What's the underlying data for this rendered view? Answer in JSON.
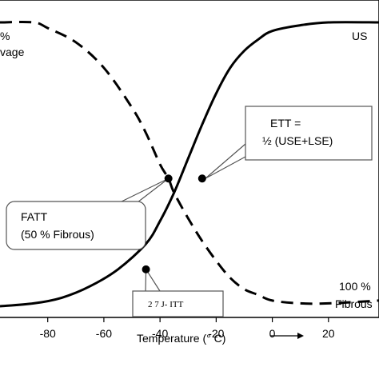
{
  "chart_data": {
    "type": "line",
    "xlabel": "Temperature (° C)",
    "ylabel": "",
    "xlim": [
      -97,
      38
    ],
    "ylim": [
      0,
      100
    ],
    "x_ticks": [
      -80,
      -60,
      -40,
      -20,
      0,
      20
    ],
    "x_tick_labels": [
      "-80",
      "-60",
      "-40",
      "-20",
      "0",
      "20"
    ],
    "grid": false,
    "series": [
      {
        "name": "",
        "style": "solid",
        "x": [
          -97,
          -85,
          -75,
          -65,
          -55,
          -45,
          -40,
          -35,
          -30,
          -25,
          -20,
          -15,
          -10,
          -5,
          0,
          10,
          20,
          38
        ],
        "y": [
          0,
          1,
          3,
          7,
          13,
          22,
          30,
          40,
          52,
          64,
          75,
          84,
          90,
          94,
          97,
          99,
          100,
          100
        ]
      },
      {
        "name": "",
        "style": "dashed",
        "x": [
          -97,
          -85,
          -80,
          -70,
          -60,
          -50,
          -45,
          -40,
          -37,
          -35,
          -30,
          -25,
          -20,
          -15,
          -10,
          -5,
          0,
          10,
          20,
          38
        ],
        "y": [
          100,
          100,
          98,
          93,
          84,
          70,
          61,
          50,
          45,
          40,
          31,
          23,
          16,
          10,
          6,
          4,
          2,
          1,
          1,
          2
        ]
      }
    ],
    "markers": [
      {
        "x": -37,
        "y": 45
      },
      {
        "x": -25,
        "y": 45
      },
      {
        "x": -45,
        "y": 13
      }
    ],
    "annotations": {
      "top_left_1": "%",
      "top_left_2": "vage",
      "top_right": "US",
      "bottom_right_1": "100 %",
      "bottom_right_2": "Fibrous",
      "ett_1": "ETT =",
      "ett_2": "½ (USE+LSE)",
      "fatt_1": "FATT",
      "fatt_2": "(50 % Fibrous)",
      "itt": "2 7 J- ITT"
    },
    "colors": {
      "line": "#000000",
      "box": "#555555",
      "background": "#ffffff"
    }
  }
}
